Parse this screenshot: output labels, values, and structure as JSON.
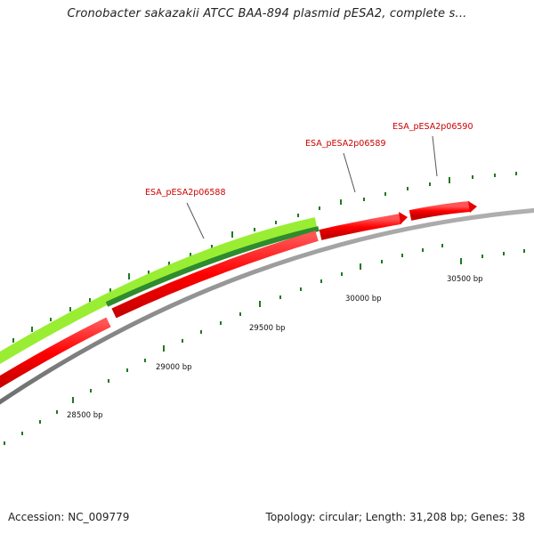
{
  "title": "Cronobacter sakazakii ATCC BAA-894 plasmid pESA2, complete s...",
  "footer": {
    "accession": "Accession: NC_009779",
    "summary": "Topology: circular; Length: 31,208 bp; Genes: 38"
  },
  "gene_labels": [
    {
      "id": "g1",
      "text": "ESA_pESA2p06588"
    },
    {
      "id": "g2",
      "text": "ESA_pESA2p06589"
    },
    {
      "id": "g3",
      "text": "ESA_pESA2p06590"
    }
  ],
  "bp_ticks": [
    {
      "id": "t1",
      "text": "28500 bp"
    },
    {
      "id": "t2",
      "text": "29000 bp"
    },
    {
      "id": "t3",
      "text": "29500 bp"
    },
    {
      "id": "t4",
      "text": "30000 bp"
    },
    {
      "id": "t5",
      "text": "30500 bp"
    }
  ],
  "colors": {
    "backbone": "#8c8c8c",
    "gene_red": "#ff0000",
    "gene_red_dark": "#cc0000",
    "feature_light_green": "#99ee33",
    "feature_dark_green": "#2e8b2e",
    "tick_green": "#1e7a1e",
    "label_red": "#cc0000"
  }
}
